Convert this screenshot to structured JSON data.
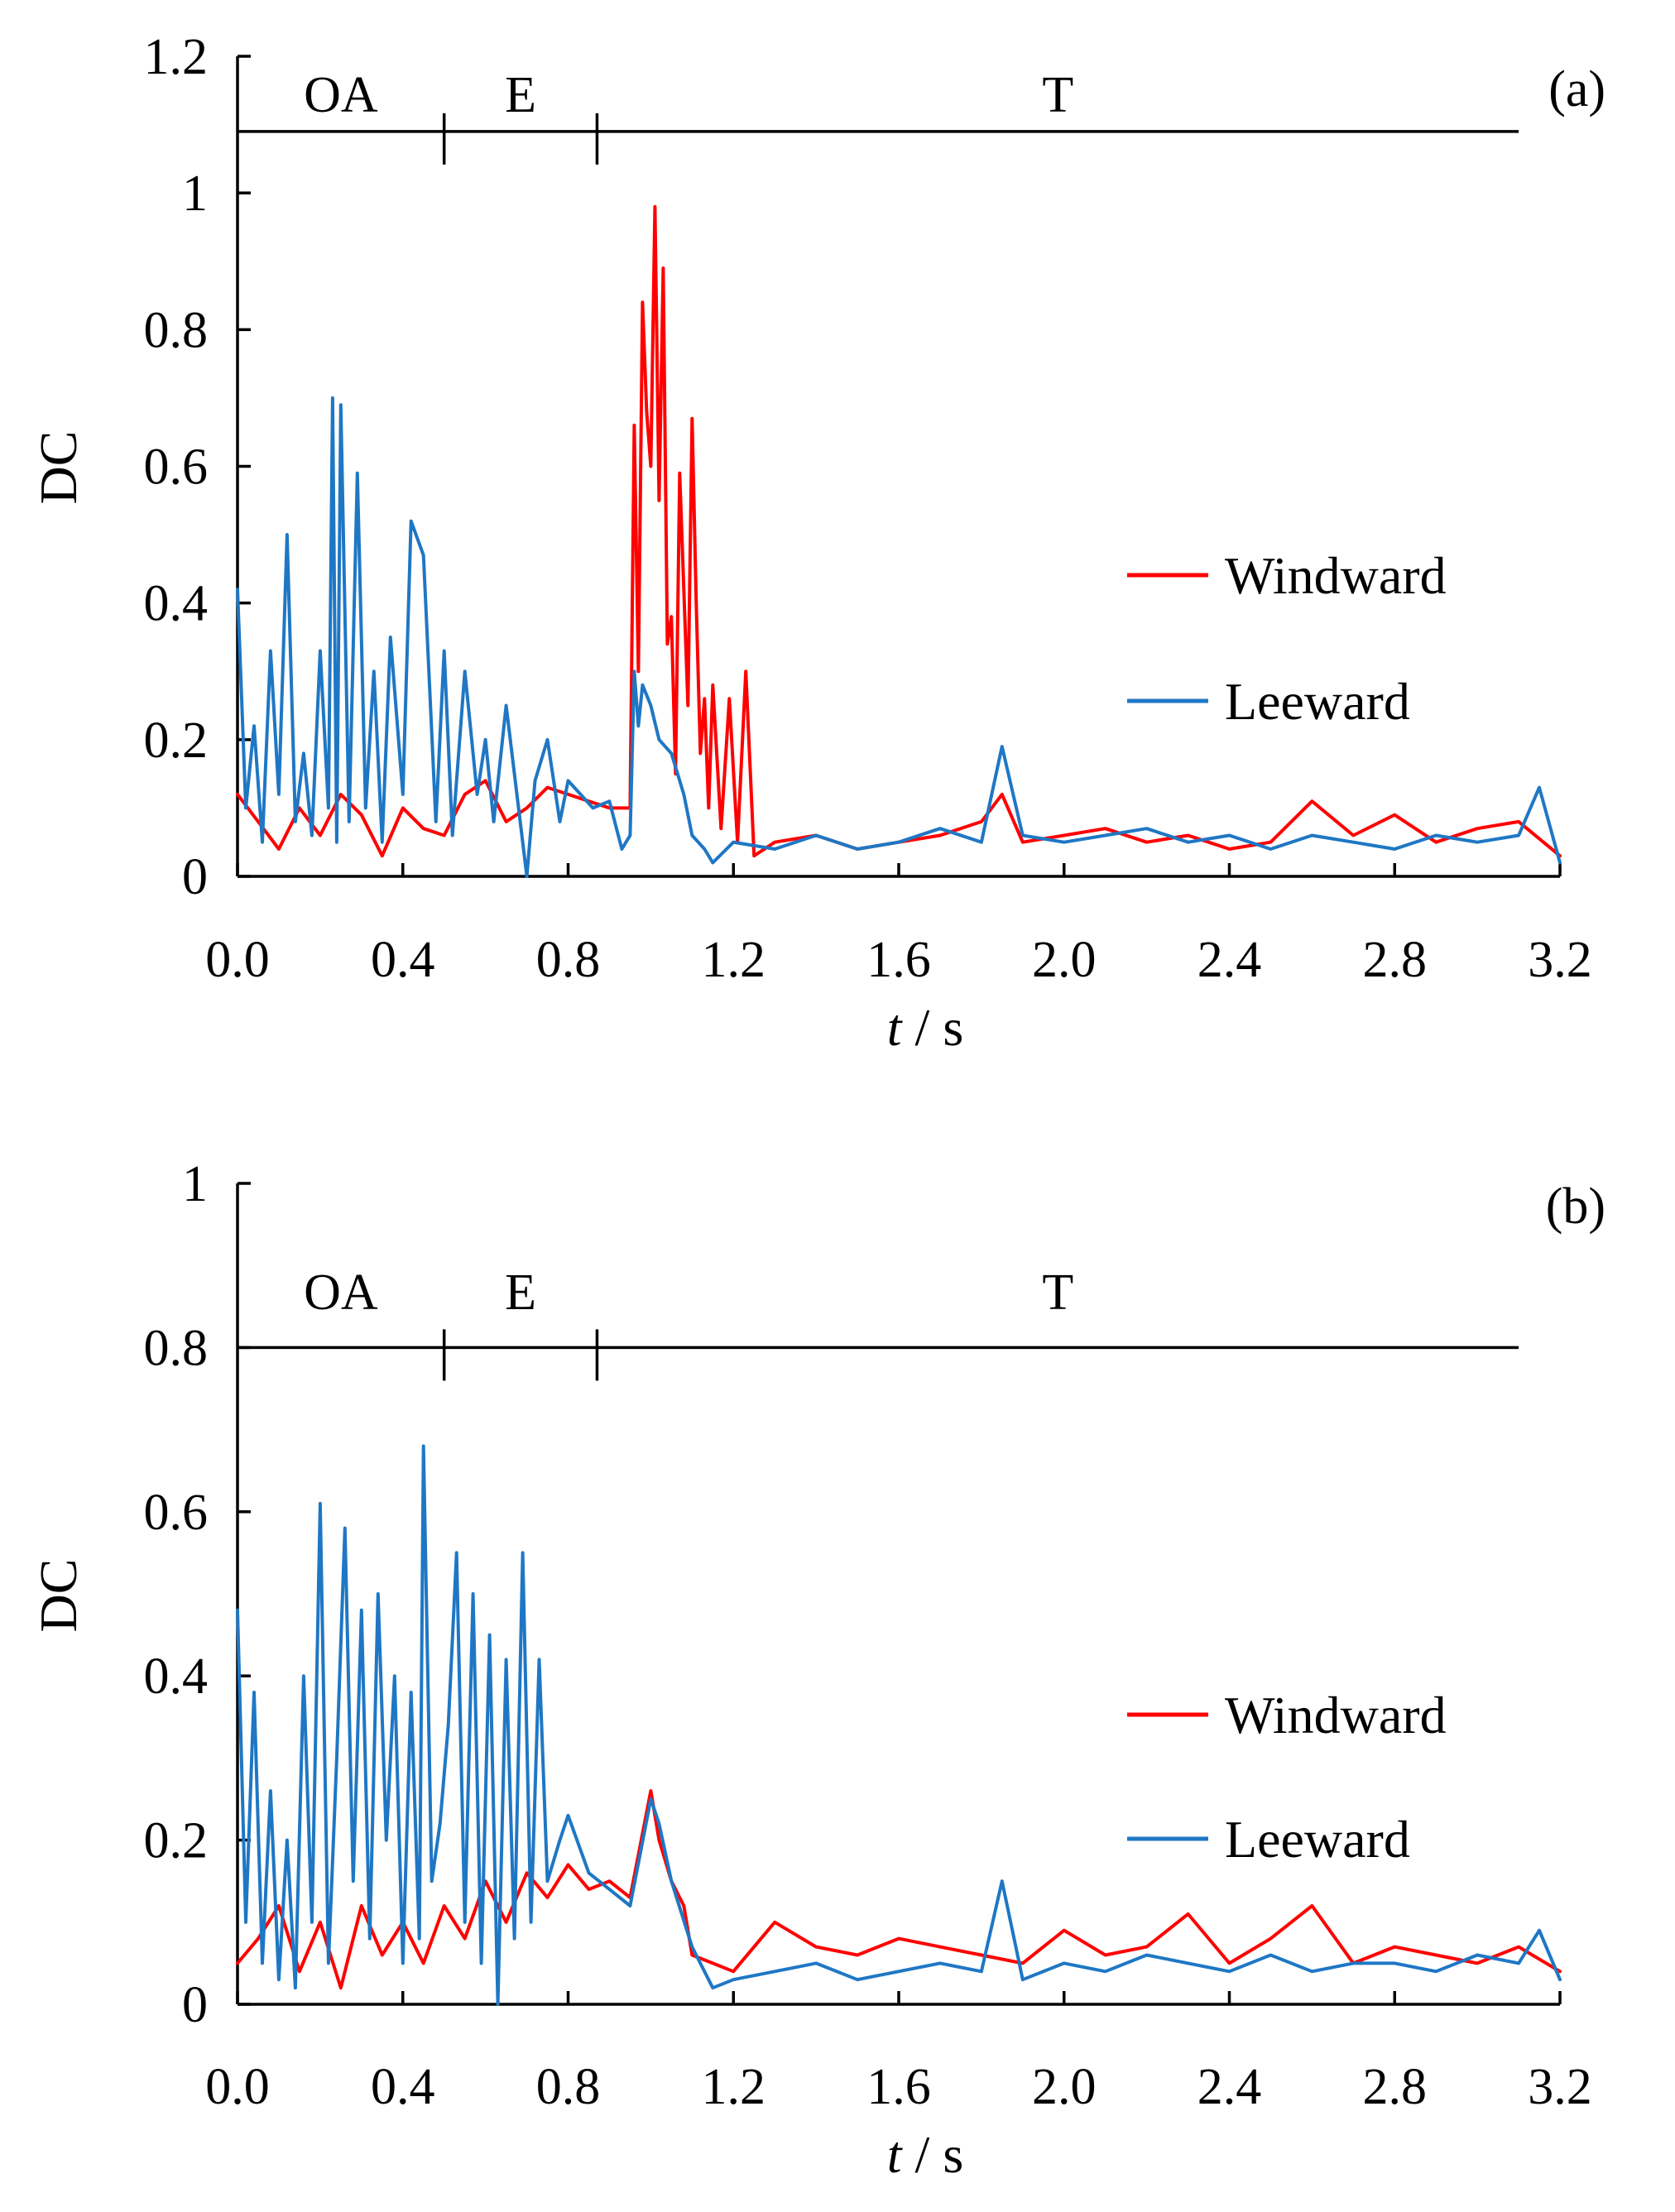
{
  "colors": {
    "windward": "#ff0000",
    "leeward": "#1f77c4",
    "axis": "#000000"
  },
  "chart_data": [
    {
      "panel_label": "(a)",
      "type": "line",
      "xlabel_italic": "t",
      "xlabel_rest": " / s",
      "ylabel": "DC",
      "xlim": [
        0.0,
        3.2
      ],
      "ylim": [
        0,
        1.2
      ],
      "x_ticks": [
        "0.0",
        "0.4",
        "0.8",
        "1.2",
        "1.6",
        "2.0",
        "2.4",
        "2.8",
        "3.2"
      ],
      "y_ticks": [
        "0",
        "0.2",
        "0.4",
        "0.6",
        "0.8",
        "1",
        "1.2"
      ],
      "phase_line_y": 1.09,
      "phase_line_x": [
        0.0,
        3.1
      ],
      "phases": [
        {
          "label": "OA",
          "start": 0.0,
          "end": 0.5
        },
        {
          "label": "E",
          "start": 0.5,
          "end": 0.87
        },
        {
          "label": "T",
          "start": 0.87,
          "end": 3.1
        }
      ],
      "series": [
        {
          "name": "Windward",
          "color": "#ff0000",
          "x": [
            0.0,
            0.05,
            0.1,
            0.15,
            0.2,
            0.25,
            0.3,
            0.35,
            0.4,
            0.45,
            0.5,
            0.55,
            0.6,
            0.65,
            0.7,
            0.75,
            0.8,
            0.85,
            0.9,
            0.95,
            0.96,
            0.97,
            0.98,
            0.99,
            1.0,
            1.01,
            1.02,
            1.03,
            1.04,
            1.05,
            1.06,
            1.07,
            1.08,
            1.09,
            1.1,
            1.11,
            1.12,
            1.13,
            1.14,
            1.15,
            1.17,
            1.19,
            1.21,
            1.23,
            1.25,
            1.3,
            1.4,
            1.5,
            1.6,
            1.7,
            1.8,
            1.85,
            1.9,
            2.0,
            2.1,
            2.2,
            2.3,
            2.4,
            2.5,
            2.6,
            2.7,
            2.8,
            2.9,
            3.0,
            3.1,
            3.2
          ],
          "values": [
            0.12,
            0.08,
            0.04,
            0.1,
            0.06,
            0.12,
            0.09,
            0.03,
            0.1,
            0.07,
            0.06,
            0.12,
            0.14,
            0.08,
            0.1,
            0.13,
            0.12,
            0.11,
            0.1,
            0.1,
            0.66,
            0.3,
            0.84,
            0.68,
            0.6,
            0.98,
            0.55,
            0.89,
            0.34,
            0.38,
            0.15,
            0.59,
            0.42,
            0.25,
            0.67,
            0.4,
            0.18,
            0.26,
            0.1,
            0.28,
            0.07,
            0.26,
            0.05,
            0.3,
            0.03,
            0.05,
            0.06,
            0.04,
            0.05,
            0.06,
            0.08,
            0.12,
            0.05,
            0.06,
            0.07,
            0.05,
            0.06,
            0.04,
            0.05,
            0.11,
            0.06,
            0.09,
            0.05,
            0.07,
            0.08,
            0.03
          ]
        },
        {
          "name": "Leeward",
          "color": "#1f77c4",
          "x": [
            0.0,
            0.02,
            0.04,
            0.06,
            0.08,
            0.1,
            0.12,
            0.14,
            0.16,
            0.18,
            0.2,
            0.22,
            0.23,
            0.24,
            0.25,
            0.27,
            0.29,
            0.31,
            0.33,
            0.35,
            0.37,
            0.4,
            0.42,
            0.45,
            0.48,
            0.5,
            0.52,
            0.55,
            0.58,
            0.6,
            0.62,
            0.65,
            0.68,
            0.7,
            0.72,
            0.75,
            0.78,
            0.8,
            0.83,
            0.86,
            0.9,
            0.93,
            0.95,
            0.96,
            0.97,
            0.98,
            1.0,
            1.02,
            1.05,
            1.08,
            1.1,
            1.13,
            1.15,
            1.2,
            1.3,
            1.4,
            1.5,
            1.6,
            1.7,
            1.8,
            1.85,
            1.9,
            2.0,
            2.1,
            2.2,
            2.3,
            2.4,
            2.5,
            2.6,
            2.7,
            2.8,
            2.9,
            3.0,
            3.1,
            3.15,
            3.2
          ],
          "values": [
            0.42,
            0.1,
            0.22,
            0.05,
            0.33,
            0.12,
            0.5,
            0.08,
            0.18,
            0.06,
            0.33,
            0.1,
            0.7,
            0.05,
            0.69,
            0.08,
            0.59,
            0.1,
            0.3,
            0.05,
            0.35,
            0.12,
            0.52,
            0.47,
            0.08,
            0.33,
            0.06,
            0.3,
            0.12,
            0.2,
            0.08,
            0.25,
            0.1,
            0.0,
            0.14,
            0.2,
            0.08,
            0.14,
            0.12,
            0.1,
            0.11,
            0.04,
            0.06,
            0.3,
            0.22,
            0.28,
            0.25,
            0.2,
            0.18,
            0.12,
            0.06,
            0.04,
            0.02,
            0.05,
            0.04,
            0.06,
            0.04,
            0.05,
            0.07,
            0.05,
            0.19,
            0.06,
            0.05,
            0.06,
            0.07,
            0.05,
            0.06,
            0.04,
            0.06,
            0.05,
            0.04,
            0.06,
            0.05,
            0.06,
            0.13,
            0.02
          ]
        }
      ]
    },
    {
      "panel_label": "(b)",
      "type": "line",
      "xlabel_italic": "t",
      "xlabel_rest": " / s",
      "ylabel": "DC",
      "xlim": [
        0.0,
        3.2
      ],
      "ylim": [
        0,
        1.0
      ],
      "x_ticks": [
        "0.0",
        "0.4",
        "0.8",
        "1.2",
        "1.6",
        "2.0",
        "2.4",
        "2.8",
        "3.2"
      ],
      "y_ticks": [
        "0",
        "0.2",
        "0.4",
        "0.6",
        "0.8",
        "1"
      ],
      "phase_line_y": 0.8,
      "phase_line_x": [
        0.0,
        3.1
      ],
      "phases": [
        {
          "label": "OA",
          "start": 0.0,
          "end": 0.5
        },
        {
          "label": "E",
          "start": 0.5,
          "end": 0.87
        },
        {
          "label": "T",
          "start": 0.87,
          "end": 3.1
        }
      ],
      "series": [
        {
          "name": "Windward",
          "color": "#ff0000",
          "x": [
            0.0,
            0.05,
            0.1,
            0.15,
            0.2,
            0.25,
            0.3,
            0.35,
            0.4,
            0.45,
            0.5,
            0.55,
            0.6,
            0.65,
            0.7,
            0.75,
            0.8,
            0.85,
            0.9,
            0.95,
            1.0,
            1.02,
            1.05,
            1.08,
            1.1,
            1.15,
            1.2,
            1.3,
            1.4,
            1.5,
            1.6,
            1.7,
            1.8,
            1.9,
            2.0,
            2.1,
            2.2,
            2.3,
            2.4,
            2.5,
            2.6,
            2.7,
            2.8,
            2.9,
            3.0,
            3.1,
            3.2
          ],
          "values": [
            0.05,
            0.08,
            0.12,
            0.04,
            0.1,
            0.02,
            0.12,
            0.06,
            0.1,
            0.05,
            0.12,
            0.08,
            0.15,
            0.1,
            0.16,
            0.13,
            0.17,
            0.14,
            0.15,
            0.13,
            0.26,
            0.2,
            0.15,
            0.12,
            0.06,
            0.05,
            0.04,
            0.1,
            0.07,
            0.06,
            0.08,
            0.07,
            0.06,
            0.05,
            0.09,
            0.06,
            0.07,
            0.11,
            0.05,
            0.08,
            0.12,
            0.05,
            0.07,
            0.06,
            0.05,
            0.07,
            0.04
          ]
        },
        {
          "name": "Leeward",
          "color": "#1f77c4",
          "x": [
            0.0,
            0.02,
            0.04,
            0.06,
            0.08,
            0.1,
            0.12,
            0.14,
            0.16,
            0.18,
            0.2,
            0.22,
            0.24,
            0.26,
            0.28,
            0.3,
            0.32,
            0.34,
            0.36,
            0.38,
            0.4,
            0.42,
            0.44,
            0.45,
            0.47,
            0.49,
            0.51,
            0.53,
            0.55,
            0.57,
            0.59,
            0.61,
            0.63,
            0.65,
            0.67,
            0.69,
            0.71,
            0.73,
            0.75,
            0.78,
            0.8,
            0.85,
            0.9,
            0.95,
            1.0,
            1.02,
            1.05,
            1.1,
            1.15,
            1.2,
            1.3,
            1.4,
            1.5,
            1.6,
            1.7,
            1.8,
            1.85,
            1.9,
            2.0,
            2.1,
            2.2,
            2.3,
            2.4,
            2.5,
            2.6,
            2.7,
            2.8,
            2.9,
            3.0,
            3.1,
            3.15,
            3.2
          ],
          "values": [
            0.48,
            0.1,
            0.38,
            0.05,
            0.26,
            0.03,
            0.2,
            0.02,
            0.4,
            0.1,
            0.61,
            0.05,
            0.3,
            0.58,
            0.15,
            0.48,
            0.08,
            0.5,
            0.2,
            0.4,
            0.05,
            0.38,
            0.08,
            0.68,
            0.15,
            0.22,
            0.34,
            0.55,
            0.1,
            0.5,
            0.05,
            0.45,
            0.0,
            0.42,
            0.08,
            0.55,
            0.1,
            0.42,
            0.15,
            0.2,
            0.23,
            0.16,
            0.14,
            0.12,
            0.25,
            0.22,
            0.15,
            0.07,
            0.02,
            0.03,
            0.04,
            0.05,
            0.03,
            0.04,
            0.05,
            0.04,
            0.15,
            0.03,
            0.05,
            0.04,
            0.06,
            0.05,
            0.04,
            0.06,
            0.04,
            0.05,
            0.05,
            0.04,
            0.06,
            0.05,
            0.09,
            0.03
          ]
        }
      ]
    }
  ]
}
